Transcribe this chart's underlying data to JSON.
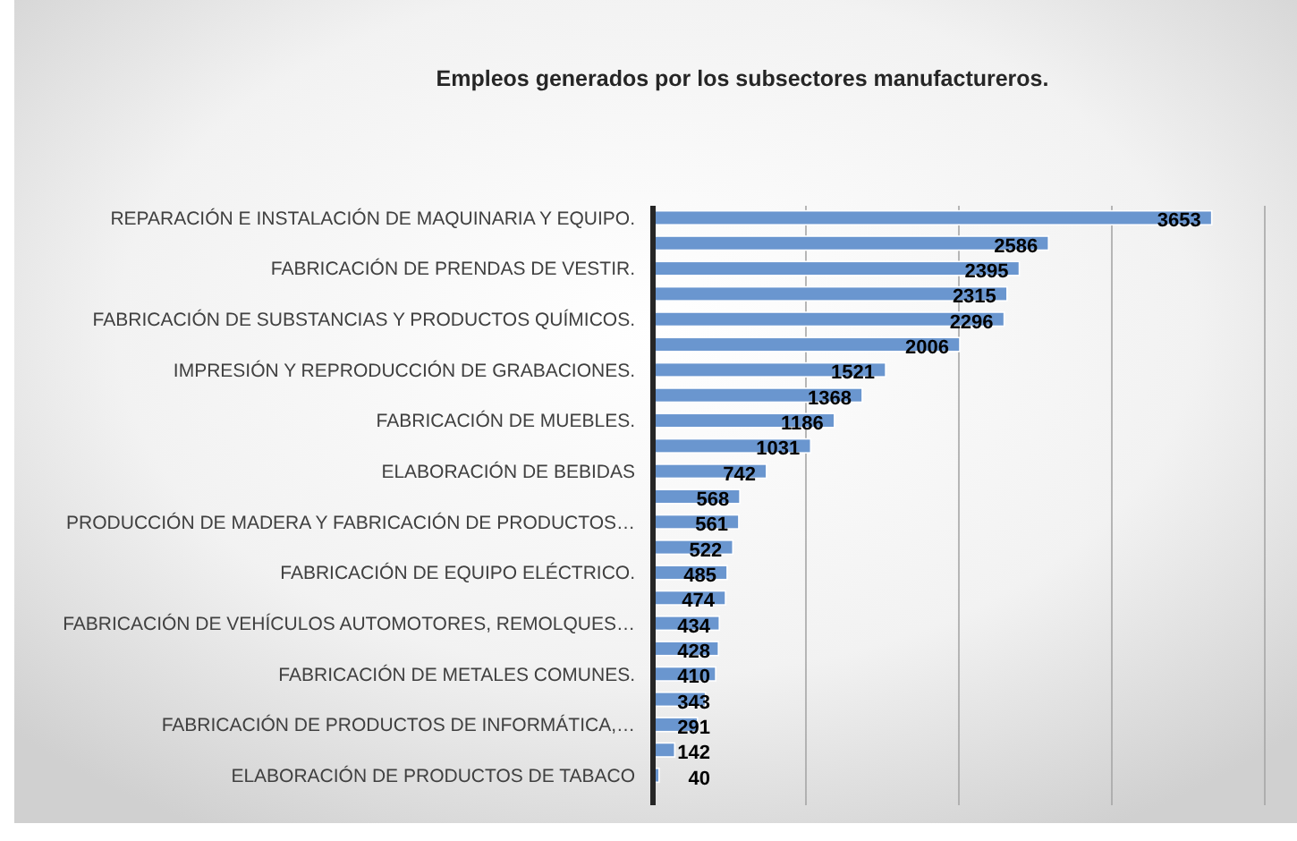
{
  "chart_data": {
    "type": "bar",
    "orientation": "horizontal",
    "title": "Empleos generados por los subsectores manufactureros.",
    "categories": [
      "REPARACIÓN E INSTALACIÓN DE MAQUINARIA Y EQUIPO.",
      null,
      "FABRICACIÓN DE PRENDAS DE VESTIR.",
      null,
      "FABRICACIÓN DE SUBSTANCIAS Y PRODUCTOS QUÍMICOS.",
      null,
      "IMPRESIÓN Y REPRODUCCIÓN DE GRABACIONES.",
      null,
      "FABRICACIÓN DE MUEBLES.",
      null,
      "ELABORACIÓN DE BEBIDAS",
      null,
      "PRODUCCIÓN DE MADERA Y FABRICACIÓN DE PRODUCTOS…",
      null,
      "FABRICACIÓN DE EQUIPO ELÉCTRICO.",
      null,
      "FABRICACIÓN DE VEHÍCULOS AUTOMOTORES, REMOLQUES…",
      null,
      "FABRICACIÓN DE METALES COMUNES.",
      null,
      "FABRICACIÓN DE PRODUCTOS DE INFORMÁTICA,…",
      null,
      "ELABORACIÓN DE PRODUCTOS DE TABACO"
    ],
    "values": [
      3653,
      2586,
      2395,
      2315,
      2296,
      2006,
      1521,
      1368,
      1186,
      1031,
      742,
      568,
      561,
      522,
      485,
      474,
      434,
      428,
      410,
      343,
      291,
      142,
      40
    ],
    "color": "#6a96cf",
    "xlim": [
      0,
      4000
    ],
    "xticks": [
      {
        "value": 0,
        "label": null
      },
      {
        "value": 1000,
        "label": null
      },
      {
        "value": 2000,
        "label": null
      },
      {
        "value": 3000,
        "label": null
      },
      {
        "value": 4000,
        "label": null
      }
    ],
    "grid": "x",
    "tick_labels": "y",
    "data_labels": true
  }
}
